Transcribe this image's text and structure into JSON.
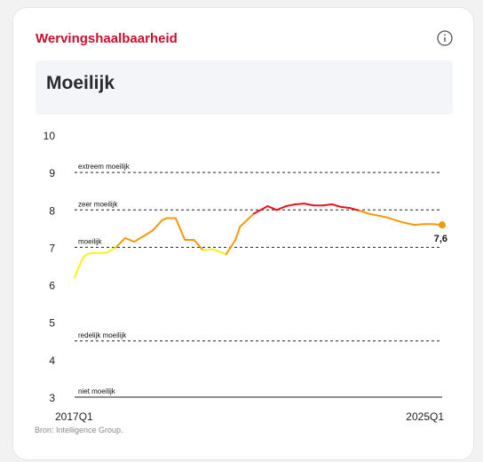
{
  "card": {
    "title": "Wervingshaalbaarheid",
    "info_icon": "info-icon",
    "status": "Moeilijk"
  },
  "source": "Bron: Intelligence Group.",
  "colors": {
    "brand": "#c8102e",
    "easy": "#f5f51a",
    "medium": "#f49a0a",
    "hard": "#e8141b"
  },
  "chart_data": {
    "type": "line",
    "y_ticks": [
      "10",
      "9",
      "8",
      "7",
      "6",
      "5",
      "4",
      "3"
    ],
    "ylim": [
      3,
      10
    ],
    "x_start_label": "2017Q1",
    "x_end_label": "2025Q1",
    "bands": [
      {
        "label": "extreem moeilijk",
        "value": 9
      },
      {
        "label": "zeer moeilijk",
        "value": 8
      },
      {
        "label": "moeilijk",
        "value": 7
      },
      {
        "label": "redelijk moeilijk",
        "value": 4.5
      },
      {
        "label": "niet moeilijk",
        "value": 3
      }
    ],
    "last_value_label": "7,6",
    "x": [
      0,
      0.1,
      0.2,
      0.3,
      0.4,
      0.5,
      0.7,
      0.9,
      1.1,
      1.3,
      1.5,
      1.7,
      1.9,
      2.0,
      2.2,
      2.4,
      2.6,
      2.8,
      3.0,
      3.05,
      3.3,
      3.5,
      3.6,
      3.9,
      4.2,
      4.4,
      4.6,
      4.8,
      5.0,
      5.2,
      5.4,
      5.6,
      5.8,
      6.0,
      6.2,
      6.4,
      6.6,
      6.8,
      7.0,
      7.2,
      7.4,
      7.6,
      7.8,
      8.0
    ],
    "values": [
      6.2,
      6.5,
      6.75,
      6.83,
      6.85,
      6.85,
      6.86,
      7.0,
      7.25,
      7.15,
      7.3,
      7.45,
      7.72,
      7.78,
      7.78,
      7.2,
      7.2,
      6.92,
      6.95,
      6.93,
      6.82,
      7.2,
      7.55,
      7.9,
      8.1,
      8.0,
      8.1,
      8.15,
      8.17,
      8.12,
      8.12,
      8.15,
      8.08,
      8.05,
      7.98,
      7.9,
      7.85,
      7.8,
      7.72,
      7.65,
      7.6,
      7.62,
      7.62,
      7.6
    ]
  }
}
